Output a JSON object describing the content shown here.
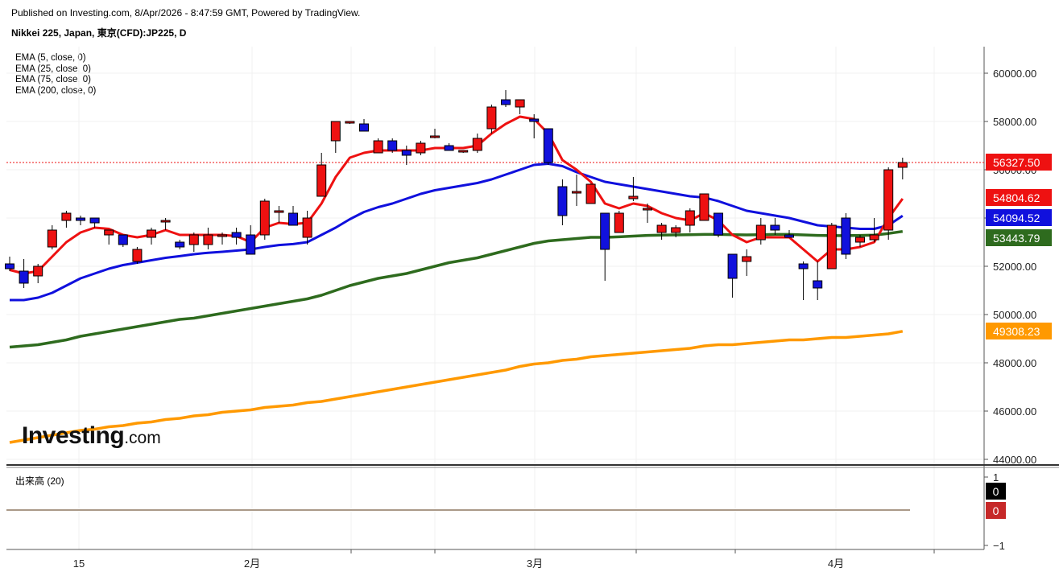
{
  "header": {
    "published": "Published on Investing.com, 8/Apr/2026 - 8:47:59 GMT, Powered by TradingView.",
    "instrument": "Nikkei 225, Japan, 東京(CFD):JP225, D"
  },
  "legend": [
    "EMA (5, close, 0)",
    "EMA (25, close, 0)",
    "EMA (75, close, 0)",
    "EMA (200, close, 0)"
  ],
  "logo": {
    "main": "Investing",
    "suffix": ".com"
  },
  "volume_panel": {
    "label": "出来高 (20)",
    "axis_labels": [
      "1",
      "−1"
    ]
  },
  "colors": {
    "up": "#ee1111",
    "down": "#1111dd",
    "ema5": "#ee1111",
    "ema25": "#1010dd",
    "ema75": "#2e6b1e",
    "ema200": "#ff9900",
    "last_price_line": "#ee1111"
  },
  "chart_data": {
    "type": "candlestick",
    "y_axis": {
      "min": 44000,
      "max": 60000,
      "ticks": [
        "60000.00",
        "58000.00",
        "56000.00",
        "54000.00",
        "52000.00",
        "50000.00",
        "48000.00",
        "46000.00",
        "44000.00"
      ]
    },
    "x_axis": {
      "ticks": [
        "15",
        "2月",
        "3月",
        "4月"
      ]
    },
    "candles": [
      {
        "o": 52100,
        "h": 52400,
        "l": 51800,
        "c": 51900
      },
      {
        "o": 51800,
        "h": 52300,
        "l": 51100,
        "c": 51300
      },
      {
        "o": 51600,
        "h": 52100,
        "l": 51300,
        "c": 52000
      },
      {
        "o": 52800,
        "h": 53700,
        "l": 52700,
        "c": 53500
      },
      {
        "o": 53900,
        "h": 54300,
        "l": 53600,
        "c": 54200
      },
      {
        "o": 54000,
        "h": 54100,
        "l": 53700,
        "c": 53900
      },
      {
        "o": 54000,
        "h": 54000,
        "l": 53600,
        "c": 53800
      },
      {
        "o": 53300,
        "h": 53500,
        "l": 52900,
        "c": 53500
      },
      {
        "o": 53300,
        "h": 53300,
        "l": 52800,
        "c": 52900
      },
      {
        "o": 52200,
        "h": 52800,
        "l": 52100,
        "c": 52700
      },
      {
        "o": 53200,
        "h": 53600,
        "l": 52900,
        "c": 53500
      },
      {
        "o": 53900,
        "h": 54000,
        "l": 53500,
        "c": 53900
      },
      {
        "o": 53000,
        "h": 53100,
        "l": 52700,
        "c": 52800
      },
      {
        "o": 52900,
        "h": 53400,
        "l": 52600,
        "c": 53300
      },
      {
        "o": 52900,
        "h": 53600,
        "l": 52700,
        "c": 53300
      },
      {
        "o": 53300,
        "h": 53400,
        "l": 52900,
        "c": 53300
      },
      {
        "o": 53400,
        "h": 53600,
        "l": 52900,
        "c": 53200
      },
      {
        "o": 53300,
        "h": 53700,
        "l": 52500,
        "c": 52500
      },
      {
        "o": 53300,
        "h": 54800,
        "l": 53100,
        "c": 54700
      },
      {
        "o": 54300,
        "h": 54500,
        "l": 53800,
        "c": 54300
      },
      {
        "o": 54200,
        "h": 54500,
        "l": 53700,
        "c": 53700
      },
      {
        "o": 53200,
        "h": 54300,
        "l": 52900,
        "c": 54000
      },
      {
        "o": 54900,
        "h": 56700,
        "l": 54900,
        "c": 56200
      },
      {
        "o": 57200,
        "h": 58000,
        "l": 56700,
        "c": 58000
      },
      {
        "o": 58000,
        "h": 58000,
        "l": 57900,
        "c": 58000
      },
      {
        "o": 57900,
        "h": 58100,
        "l": 57600,
        "c": 57600
      },
      {
        "o": 56700,
        "h": 57300,
        "l": 56700,
        "c": 57200
      },
      {
        "o": 57200,
        "h": 57300,
        "l": 56700,
        "c": 56800
      },
      {
        "o": 56800,
        "h": 57000,
        "l": 56200,
        "c": 56600
      },
      {
        "o": 56700,
        "h": 57200,
        "l": 56600,
        "c": 57100
      },
      {
        "o": 57400,
        "h": 57700,
        "l": 57300,
        "c": 57400
      },
      {
        "o": 57000,
        "h": 57100,
        "l": 56900,
        "c": 56800
      },
      {
        "o": 56800,
        "h": 56800,
        "l": 56700,
        "c": 56800
      },
      {
        "o": 56800,
        "h": 57500,
        "l": 56700,
        "c": 57300
      },
      {
        "o": 57700,
        "h": 58700,
        "l": 57500,
        "c": 58600
      },
      {
        "o": 58900,
        "h": 59300,
        "l": 58600,
        "c": 58700
      },
      {
        "o": 58600,
        "h": 58900,
        "l": 58300,
        "c": 58900
      },
      {
        "o": 58100,
        "h": 58300,
        "l": 57300,
        "c": 58000
      },
      {
        "o": 57700,
        "h": 57700,
        "l": 56200,
        "c": 56300
      },
      {
        "o": 55300,
        "h": 55600,
        "l": 53700,
        "c": 54100
      },
      {
        "o": 55100,
        "h": 55800,
        "l": 54500,
        "c": 55100
      },
      {
        "o": 54600,
        "h": 55400,
        "l": 54600,
        "c": 55400
      },
      {
        "o": 54200,
        "h": 54200,
        "l": 51400,
        "c": 52700
      },
      {
        "o": 53400,
        "h": 54300,
        "l": 53400,
        "c": 54200
      },
      {
        "o": 54800,
        "h": 55700,
        "l": 54700,
        "c": 54900
      },
      {
        "o": 54400,
        "h": 54600,
        "l": 53800,
        "c": 54400
      },
      {
        "o": 53400,
        "h": 53800,
        "l": 53100,
        "c": 53700
      },
      {
        "o": 53400,
        "h": 53700,
        "l": 53200,
        "c": 53600
      },
      {
        "o": 53700,
        "h": 54400,
        "l": 53400,
        "c": 54300
      },
      {
        "o": 53900,
        "h": 55000,
        "l": 53900,
        "c": 55000
      },
      {
        "o": 54200,
        "h": 54200,
        "l": 53200,
        "c": 53300
      },
      {
        "o": 52500,
        "h": 52500,
        "l": 50700,
        "c": 51500
      },
      {
        "o": 52200,
        "h": 52700,
        "l": 51600,
        "c": 52400
      },
      {
        "o": 53100,
        "h": 54000,
        "l": 52900,
        "c": 53700
      },
      {
        "o": 53700,
        "h": 54000,
        "l": 53300,
        "c": 53500
      },
      {
        "o": 53300,
        "h": 53500,
        "l": 53200,
        "c": 53200
      },
      {
        "o": 52100,
        "h": 52200,
        "l": 50600,
        "c": 51900
      },
      {
        "o": 51400,
        "h": 52200,
        "l": 50600,
        "c": 51100
      },
      {
        "o": 51900,
        "h": 53800,
        "l": 51900,
        "c": 53700
      },
      {
        "o": 54000,
        "h": 54200,
        "l": 52300,
        "c": 52500
      },
      {
        "o": 53000,
        "h": 53300,
        "l": 52800,
        "c": 53200
      },
      {
        "o": 53100,
        "h": 54000,
        "l": 53000,
        "c": 53300
      },
      {
        "o": 53500,
        "h": 56100,
        "l": 53100,
        "c": 56000
      },
      {
        "o": 56100,
        "h": 56500,
        "l": 55600,
        "c": 56300
      }
    ],
    "ema5": [
      51850,
      51700,
      51800,
      52400,
      53000,
      53400,
      53600,
      53550,
      53300,
      53200,
      53300,
      53500,
      53300,
      53300,
      53300,
      53300,
      53250,
      53000,
      53600,
      53800,
      53750,
      53800,
      54600,
      55700,
      56500,
      56700,
      56800,
      56800,
      56800,
      56800,
      56900,
      56900,
      56900,
      57000,
      57500,
      57900,
      58200,
      58100,
      57500,
      56400,
      56000,
      55500,
      54600,
      54400,
      54600,
      54500,
      54200,
      54000,
      53900,
      54200,
      53900,
      53300,
      53000,
      53200,
      53200,
      53200,
      52700,
      52200,
      52700,
      52700,
      52800,
      53000,
      54000,
      54800
    ],
    "ema25": [
      50600,
      50600,
      50700,
      50900,
      51200,
      51500,
      51700,
      51900,
      52050,
      52150,
      52250,
      52350,
      52420,
      52500,
      52560,
      52600,
      52650,
      52700,
      52800,
      52880,
      52920,
      53000,
      53300,
      53600,
      53950,
      54250,
      54450,
      54600,
      54800,
      55000,
      55150,
      55250,
      55350,
      55450,
      55600,
      55800,
      56000,
      56200,
      56250,
      56150,
      55900,
      55700,
      55500,
      55400,
      55300,
      55200,
      55100,
      55000,
      54900,
      54850,
      54700,
      54500,
      54300,
      54200,
      54100,
      54000,
      53850,
      53700,
      53650,
      53600,
      53550,
      53550,
      53700,
      54094.52
    ],
    "ema75": [
      48650,
      48700,
      48750,
      48850,
      48950,
      49100,
      49200,
      49300,
      49400,
      49500,
      49600,
      49700,
      49800,
      49850,
      49950,
      50050,
      50150,
      50250,
      50350,
      50450,
      50550,
      50650,
      50800,
      51000,
      51200,
      51350,
      51500,
      51600,
      51700,
      51850,
      52000,
      52150,
      52250,
      52350,
      52500,
      52650,
      52800,
      52950,
      53050,
      53100,
      53150,
      53200,
      53200,
      53220,
      53250,
      53280,
      53290,
      53300,
      53310,
      53320,
      53320,
      53310,
      53300,
      53310,
      53320,
      53320,
      53300,
      53280,
      53270,
      53270,
      53280,
      53290,
      53360,
      53443.79
    ],
    "ema200": [
      44700,
      44800,
      44900,
      45000,
      45100,
      45200,
      45250,
      45350,
      45400,
      45500,
      45550,
      45650,
      45700,
      45800,
      45850,
      45950,
      46000,
      46050,
      46150,
      46200,
      46250,
      46350,
      46400,
      46500,
      46600,
      46700,
      46800,
      46900,
      47000,
      47100,
      47200,
      47300,
      47400,
      47500,
      47600,
      47700,
      47850,
      47950,
      48000,
      48100,
      48150,
      48250,
      48300,
      48350,
      48400,
      48450,
      48500,
      48550,
      48600,
      48700,
      48750,
      48750,
      48800,
      48850,
      48900,
      48950,
      48950,
      49000,
      49050,
      49050,
      49100,
      49150,
      49200,
      49308.23
    ],
    "price_badges": [
      {
        "value": "56327.50",
        "series": "last"
      },
      {
        "value": "54804.62",
        "series": "ema5"
      },
      {
        "value": "54094.52",
        "series": "ema25"
      },
      {
        "value": "53443.79",
        "series": "ema75"
      },
      {
        "value": "49308.23",
        "series": "ema200"
      }
    ],
    "volume_badges": [
      {
        "value": "0",
        "color": "#000000"
      },
      {
        "value": "0",
        "color": "#c62828"
      }
    ]
  }
}
